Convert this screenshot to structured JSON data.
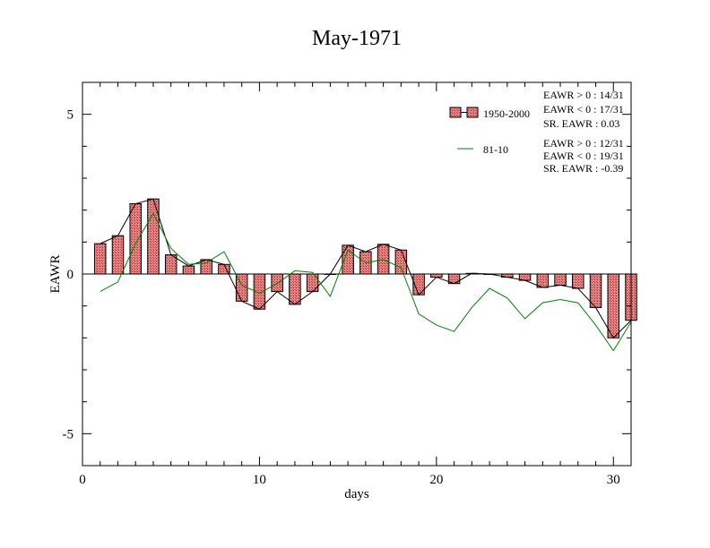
{
  "chart_data": {
    "type": "bar",
    "title": "May-1971",
    "xlabel": "days",
    "ylabel": "EAWR",
    "xlim": [
      0,
      31
    ],
    "ylim": [
      -6,
      6
    ],
    "xticks": [
      0,
      10,
      20,
      30
    ],
    "yticks": [
      -5,
      0,
      5
    ],
    "xtick_labels": [
      "0",
      "10",
      "20",
      "30"
    ],
    "ytick_labels": [
      "-5",
      "0",
      "5"
    ],
    "grid": false,
    "legend_position": "top-right",
    "x": [
      1,
      2,
      3,
      4,
      5,
      6,
      7,
      8,
      9,
      10,
      11,
      12,
      13,
      14,
      15,
      16,
      17,
      18,
      19,
      20,
      21,
      22,
      23,
      24,
      25,
      26,
      27,
      28,
      29,
      30,
      31
    ],
    "series": [
      {
        "name": "1950-2000",
        "kind": "bar",
        "color": "#f08080",
        "values": [
          0.95,
          1.2,
          2.2,
          2.35,
          0.6,
          0.25,
          0.45,
          0.3,
          -0.85,
          -1.1,
          -0.55,
          -0.95,
          -0.55,
          0.0,
          0.9,
          0.7,
          0.93,
          0.75,
          -0.65,
          -0.1,
          -0.3,
          0.02,
          0.0,
          -0.1,
          -0.2,
          -0.42,
          -0.35,
          -0.45,
          -1.05,
          -2.0,
          -1.45
        ]
      },
      {
        "name": "81-10",
        "kind": "line",
        "color": "#008000",
        "values": [
          -0.55,
          -0.25,
          0.95,
          1.9,
          0.8,
          0.3,
          0.35,
          0.7,
          -0.35,
          -0.6,
          -0.3,
          0.1,
          0.05,
          -0.7,
          0.75,
          0.35,
          0.45,
          0.2,
          -1.25,
          -1.6,
          -1.8,
          -1.05,
          -0.45,
          -0.75,
          -1.4,
          -0.9,
          -0.8,
          -0.9,
          -1.6,
          -2.4,
          -1.5
        ]
      }
    ],
    "stats_1950_2000": [
      "EAWR > 0 : 14/31",
      "EAWR < 0 : 17/31",
      "SR. EAWR :  0.03"
    ],
    "stats_81_10": [
      "EAWR > 0 : 12/31",
      "EAWR < 0 : 19/31",
      "SR. EAWR : -0.39"
    ]
  }
}
